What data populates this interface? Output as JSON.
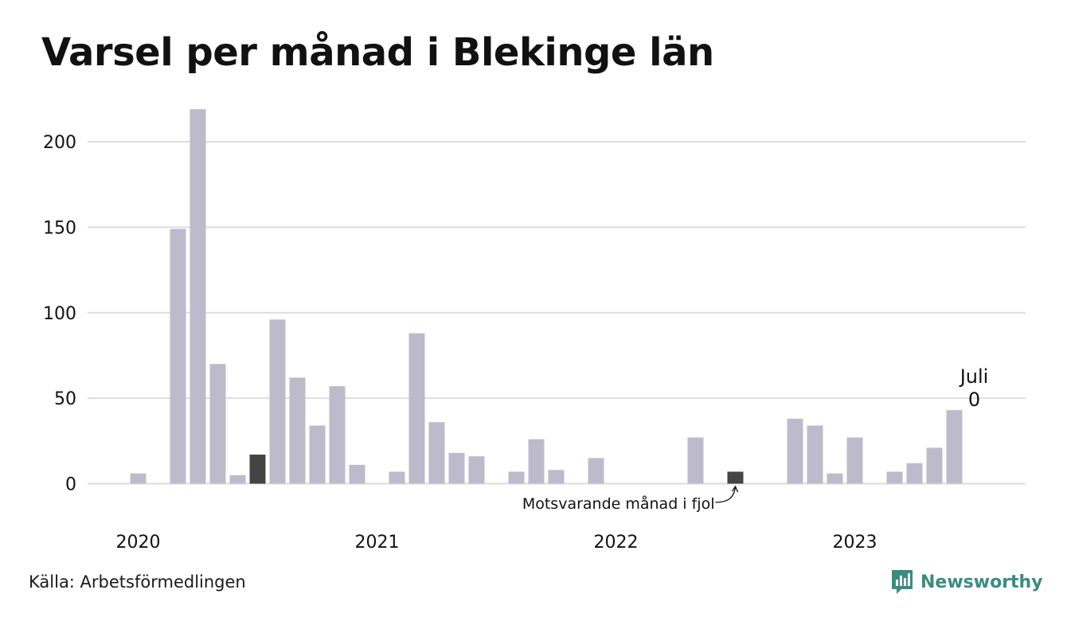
{
  "title": "Varsel per månad i Blekinge län",
  "source": "Källa: Arbetsförmedlingen",
  "brand": "Newsworthy",
  "colors": {
    "bar": "#bdbbcb",
    "highlight": "#444444",
    "grid": "#dddddd",
    "text": "#111111",
    "brand": "#3a8c7e"
  },
  "chart_data": {
    "type": "bar",
    "title": "Varsel per månad i Blekinge län",
    "xlabel": "",
    "ylabel": "",
    "ylim": [
      0,
      220
    ],
    "yticks": [
      0,
      50,
      100,
      150,
      200
    ],
    "grid": true,
    "legend": "none",
    "year_labels": [
      "2020",
      "2021",
      "2022",
      "2023"
    ],
    "categories": [
      "2020-01",
      "2020-02",
      "2020-03",
      "2020-04",
      "2020-05",
      "2020-06",
      "2020-07",
      "2020-08",
      "2020-09",
      "2020-10",
      "2020-11",
      "2020-12",
      "2021-01",
      "2021-02",
      "2021-03",
      "2021-04",
      "2021-05",
      "2021-06",
      "2021-07",
      "2021-08",
      "2021-09",
      "2021-10",
      "2021-11",
      "2021-12",
      "2022-01",
      "2022-02",
      "2022-03",
      "2022-04",
      "2022-05",
      "2022-06",
      "2022-07",
      "2022-08",
      "2022-09",
      "2022-10",
      "2022-11",
      "2022-12",
      "2023-01",
      "2023-02",
      "2023-03",
      "2023-04",
      "2023-05",
      "2023-06",
      "2023-07"
    ],
    "values": [
      6,
      0,
      149,
      219,
      70,
      5,
      17,
      96,
      62,
      34,
      57,
      11,
      0,
      7,
      88,
      36,
      18,
      16,
      0,
      7,
      26,
      8,
      0,
      15,
      0,
      0,
      0,
      0,
      27,
      0,
      7,
      0,
      0,
      38,
      34,
      6,
      27,
      0,
      7,
      12,
      21,
      43,
      0
    ],
    "highlighted": [
      "2020-07",
      "2022-07"
    ],
    "annotations": [
      {
        "category": "2022-07",
        "text": "Motsvarande månad i fjol"
      },
      {
        "category": "2023-07",
        "text": "Juli",
        "value_text": "0"
      }
    ]
  }
}
